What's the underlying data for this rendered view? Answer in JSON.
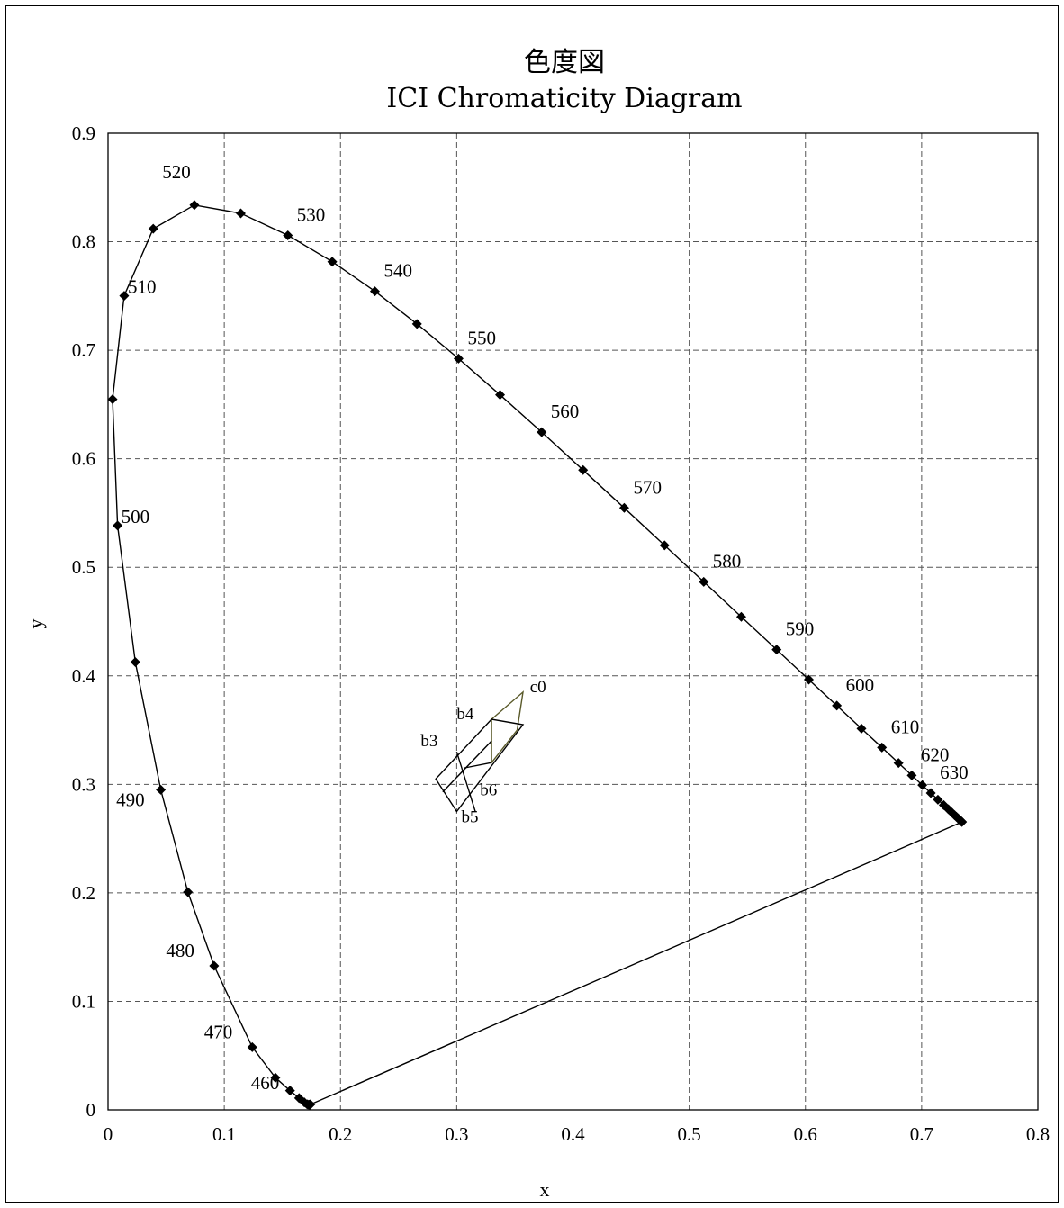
{
  "chart_data": {
    "type": "scatter",
    "title_line1": "色度図",
    "title_line2": "ICI Chromaticity Diagram",
    "xlabel": "x",
    "ylabel": "y",
    "xlim": [
      0,
      0.8
    ],
    "ylim": [
      0,
      0.9
    ],
    "x_ticks": [
      "0",
      "0.1",
      "0.2",
      "0.3",
      "0.4",
      "0.5",
      "0.6",
      "0.7",
      "0.8"
    ],
    "y_ticks": [
      "0",
      "0.1",
      "0.2",
      "0.3",
      "0.4",
      "0.5",
      "0.6",
      "0.7",
      "0.8",
      "0.9"
    ],
    "grid": true,
    "spectral_locus": {
      "x": [
        0.1741,
        0.1738,
        0.1733,
        0.1726,
        0.1714,
        0.1689,
        0.1644,
        0.1566,
        0.144,
        0.1241,
        0.0913,
        0.0687,
        0.0454,
        0.0235,
        0.0082,
        0.0039,
        0.0139,
        0.0389,
        0.0743,
        0.1142,
        0.1547,
        0.1929,
        0.2296,
        0.2658,
        0.3016,
        0.3373,
        0.3731,
        0.4087,
        0.4441,
        0.4788,
        0.5125,
        0.5448,
        0.5752,
        0.6029,
        0.627,
        0.6482,
        0.6658,
        0.6801,
        0.6915,
        0.7006,
        0.7079,
        0.714,
        0.719,
        0.723,
        0.726,
        0.7283,
        0.73,
        0.7311,
        0.732,
        0.7327,
        0.7334,
        0.734,
        0.7344,
        0.7346,
        0.7347
      ],
      "y": [
        0.005,
        0.0049,
        0.0048,
        0.0048,
        0.0051,
        0.0069,
        0.0109,
        0.0177,
        0.0297,
        0.0578,
        0.1327,
        0.2007,
        0.295,
        0.4127,
        0.5384,
        0.6548,
        0.7502,
        0.812,
        0.8338,
        0.8262,
        0.8059,
        0.7816,
        0.7543,
        0.7243,
        0.6923,
        0.6589,
        0.6245,
        0.5896,
        0.5547,
        0.5202,
        0.4866,
        0.4544,
        0.4242,
        0.3965,
        0.3725,
        0.3514,
        0.334,
        0.3197,
        0.3083,
        0.2993,
        0.292,
        0.2859,
        0.2809,
        0.277,
        0.274,
        0.2717,
        0.27,
        0.2689,
        0.268,
        0.2673,
        0.2666,
        0.266,
        0.2656,
        0.2654,
        0.2653
      ]
    },
    "wavelength_labels": [
      {
        "text": "460",
        "x": 0.1644,
        "y": 0.0109
      },
      {
        "text": "470",
        "x": 0.1241,
        "y": 0.0578
      },
      {
        "text": "480",
        "x": 0.0913,
        "y": 0.1327
      },
      {
        "text": "490",
        "x": 0.0454,
        "y": 0.295
      },
      {
        "text": "500",
        "x": 0.0082,
        "y": 0.5384
      },
      {
        "text": "510",
        "x": 0.0139,
        "y": 0.7502
      },
      {
        "text": "520",
        "x": 0.0743,
        "y": 0.8338
      },
      {
        "text": "530",
        "x": 0.1547,
        "y": 0.8059
      },
      {
        "text": "540",
        "x": 0.2296,
        "y": 0.7543
      },
      {
        "text": "550",
        "x": 0.3016,
        "y": 0.6923
      },
      {
        "text": "560",
        "x": 0.3731,
        "y": 0.6245
      },
      {
        "text": "570",
        "x": 0.4441,
        "y": 0.5547
      },
      {
        "text": "580",
        "x": 0.5125,
        "y": 0.4866
      },
      {
        "text": "590",
        "x": 0.5752,
        "y": 0.4242
      },
      {
        "text": "600",
        "x": 0.627,
        "y": 0.3725
      },
      {
        "text": "610",
        "x": 0.6658,
        "y": 0.334
      },
      {
        "text": "620",
        "x": 0.6915,
        "y": 0.3083
      },
      {
        "text": "630",
        "x": 0.7079,
        "y": 0.292
      }
    ],
    "white_region": {
      "outline": [
        [
          0.282,
          0.305
        ],
        [
          0.33,
          0.36
        ],
        [
          0.357,
          0.355
        ],
        [
          0.3,
          0.275
        ]
      ],
      "c0_outline": [
        [
          0.33,
          0.36
        ],
        [
          0.357,
          0.385
        ],
        [
          0.352,
          0.35
        ],
        [
          0.33,
          0.32
        ]
      ],
      "inner_lines": [
        [
          [
            0.3,
            0.33
          ],
          [
            0.316,
            0.275
          ]
        ],
        [
          [
            0.288,
            0.293
          ],
          [
            0.33,
            0.34
          ]
        ],
        [
          [
            0.306,
            0.315
          ],
          [
            0.33,
            0.32
          ]
        ]
      ],
      "labels": [
        {
          "text": "c0",
          "x": 0.363,
          "y": 0.385
        },
        {
          "text": "b4",
          "x": 0.3,
          "y": 0.36
        },
        {
          "text": "b3",
          "x": 0.269,
          "y": 0.335
        },
        {
          "text": "b6",
          "x": 0.32,
          "y": 0.29
        },
        {
          "text": "b5",
          "x": 0.304,
          "y": 0.265
        }
      ]
    }
  }
}
